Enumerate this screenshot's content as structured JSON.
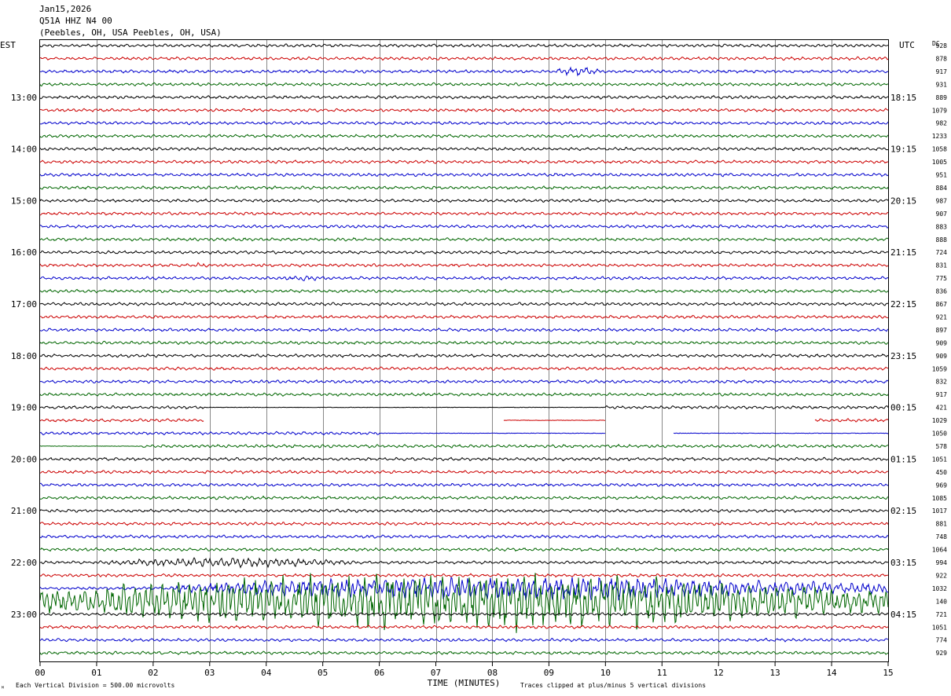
{
  "header": {
    "date": "Jan15,2026",
    "station": "Q51A HHZ N4 00",
    "location": "(Peebles, OH, USA Peebles, OH, USA)"
  },
  "chart_data": {
    "type": "line",
    "left_axis_label": "EST",
    "right_axis_label": "UTC",
    "dc_label": "DC",
    "xlabel": "TIME (MINUTES)",
    "x_ticks": [
      "00",
      "01",
      "02",
      "03",
      "04",
      "05",
      "06",
      "07",
      "08",
      "09",
      "10",
      "11",
      "12",
      "13",
      "14",
      "15"
    ],
    "xlim": [
      0,
      15
    ],
    "est_hour_labels": [
      "13:00",
      "14:00",
      "15:00",
      "16:00",
      "17:00",
      "18:00",
      "19:00",
      "20:00",
      "21:00",
      "22:00",
      "23:00"
    ],
    "utc_hour_labels": [
      "18:15",
      "19:15",
      "20:15",
      "21:15",
      "22:15",
      "23:15",
      "00:15",
      "01:15",
      "02:15",
      "03:15",
      "04:15"
    ],
    "first_labeled_trace_index": 4,
    "dc_offsets": [
      928,
      878,
      917,
      931,
      889,
      1079,
      982,
      1233,
      1058,
      1005,
      951,
      884,
      987,
      907,
      883,
      888,
      724,
      831,
      775,
      836,
      867,
      921,
      897,
      909,
      909,
      1059,
      832,
      917,
      421,
      1029,
      1050,
      578,
      1051,
      450,
      969,
      1085,
      1017,
      881,
      748,
      1064,
      994,
      922,
      1032,
      140,
      721,
      1051,
      774,
      929
    ],
    "trace_colors": [
      "#000000",
      "#cc0000",
      "#0000cc",
      "#006600"
    ],
    "grid": true,
    "footer_left": "Each Vertical Division = 500.00 microvolts",
    "footer_right": "Traces clipped at plus/minus 5 vertical divisions",
    "corner_mark": "ᴹ",
    "events": [
      {
        "trace": 2,
        "start_min": 9.1,
        "end_min": 9.9,
        "amplitude": 5
      },
      {
        "trace": 17,
        "start_min": 2.7,
        "end_min": 3.0,
        "amplitude": 3
      },
      {
        "trace": 18,
        "start_min": 4.2,
        "end_min": 5.1,
        "amplitude": 3
      },
      {
        "trace": 40,
        "start_min": 1.2,
        "end_min": 5.5,
        "amplitude": 5
      },
      {
        "trace": 42,
        "start_min": 2.4,
        "end_min": 15.0,
        "amplitude": 12
      },
      {
        "trace": 43,
        "start_min": 0.0,
        "end_min": 15.0,
        "amplitude": 30
      }
    ],
    "gaps": [
      {
        "trace": 29,
        "start_min": 2.9,
        "end_min": 8.2
      },
      {
        "trace": 29,
        "start_min": 10.0,
        "end_min": 13.7
      },
      {
        "trace": 30,
        "start_min": 10.0,
        "end_min": 11.2
      }
    ],
    "flat_segments": [
      {
        "trace": 29,
        "start_min": 8.2,
        "end_min": 10.0
      },
      {
        "trace": 30,
        "start_min": 6.0,
        "end_min": 10.0
      },
      {
        "trace": 30,
        "start_min": 11.2,
        "end_min": 15.0
      },
      {
        "trace": 31,
        "start_min": 0.0,
        "end_min": 1.8
      },
      {
        "trace": 28,
        "start_min": 2.9,
        "end_min": 10.0
      }
    ]
  }
}
